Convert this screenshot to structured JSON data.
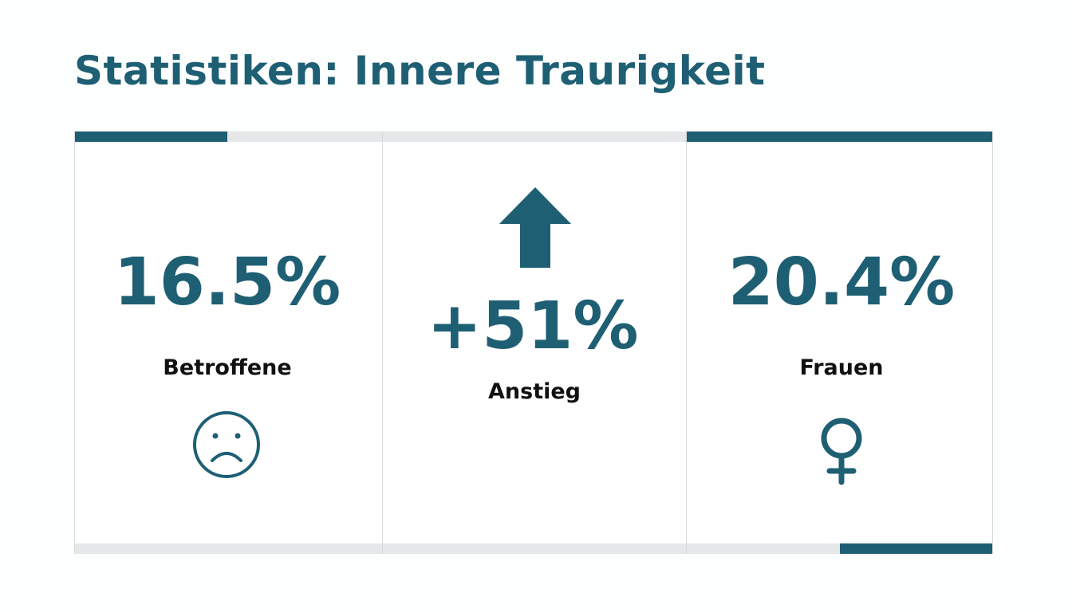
{
  "header": {
    "title": "Statistiken: Innere Traurigkeit"
  },
  "cards": [
    {
      "value": "16.5%",
      "label": "Betroffene"
    },
    {
      "value": "+51%",
      "label": "Anstieg"
    },
    {
      "value": "20.4%",
      "label": "Frauen"
    }
  ]
}
